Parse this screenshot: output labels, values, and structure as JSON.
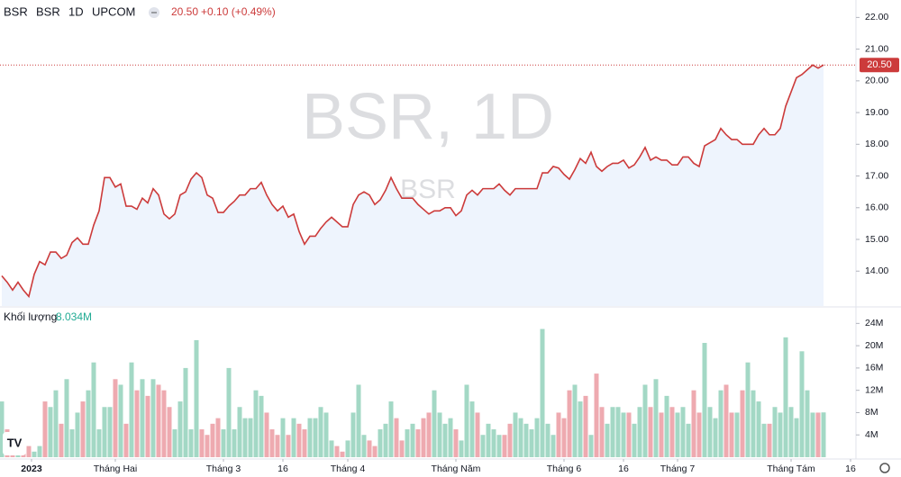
{
  "header": {
    "symbol": "BSR",
    "name": "BSR",
    "interval": "1D",
    "exchange": "UPCOM",
    "price": "20.50",
    "change": "+0.10 (+0.49%)",
    "watermark": "BSR, 1D",
    "watermark_sub": "BSR"
  },
  "chart_data": [
    {
      "type": "line",
      "color": "#cc3b3b",
      "area_color": "#eef4fd",
      "xlim": [
        -0.33,
        158
      ],
      "ylim": [
        12.9,
        22.55
      ],
      "yticks": [
        {
          "value": 14,
          "label": "14.00"
        },
        {
          "value": 15,
          "label": "15.00"
        },
        {
          "value": 16,
          "label": "16.00"
        },
        {
          "value": 17,
          "label": "17.00"
        },
        {
          "value": 18,
          "label": "18.00"
        },
        {
          "value": 19,
          "label": "19.00"
        },
        {
          "value": 20,
          "label": "20.00"
        },
        {
          "value": 21,
          "label": "21.00"
        },
        {
          "value": 22,
          "label": "22.00"
        }
      ],
      "values": [
        13.85,
        13.65,
        13.4,
        13.65,
        13.4,
        13.2,
        13.9,
        14.3,
        14.2,
        14.6,
        14.6,
        14.4,
        14.5,
        14.9,
        15.05,
        14.85,
        14.85,
        15.45,
        15.9,
        16.95,
        16.95,
        16.65,
        16.75,
        16.05,
        16.05,
        15.95,
        16.3,
        16.15,
        16.6,
        16.4,
        15.8,
        15.65,
        15.8,
        16.4,
        16.5,
        16.9,
        17.1,
        16.95,
        16.4,
        16.3,
        15.85,
        15.85,
        16.05,
        16.2,
        16.4,
        16.4,
        16.6,
        16.6,
        16.8,
        16.4,
        16.1,
        15.9,
        16.05,
        15.7,
        15.8,
        15.25,
        14.85,
        15.1,
        15.1,
        15.35,
        15.55,
        15.7,
        15.55,
        15.4,
        15.4,
        16.1,
        16.4,
        16.5,
        16.4,
        16.1,
        16.25,
        16.55,
        16.95,
        16.6,
        16.3,
        16.3,
        16.3,
        16.1,
        15.95,
        15.8,
        15.9,
        15.9,
        16.0,
        16.0,
        15.75,
        15.9,
        16.4,
        16.55,
        16.4,
        16.6,
        16.6,
        16.6,
        16.75,
        16.55,
        16.4,
        16.6,
        16.6,
        16.6,
        16.6,
        16.6,
        17.1,
        17.1,
        17.3,
        17.25,
        17.05,
        16.9,
        17.2,
        17.55,
        17.4,
        17.75,
        17.3,
        17.15,
        17.3,
        17.4,
        17.4,
        17.5,
        17.25,
        17.35,
        17.6,
        17.9,
        17.5,
        17.6,
        17.5,
        17.5,
        17.35,
        17.35,
        17.6,
        17.6,
        17.4,
        17.3,
        17.95,
        18.05,
        18.15,
        18.5,
        18.3,
        18.15,
        18.15,
        18.0,
        18.0,
        18.0,
        18.3,
        18.5,
        18.3,
        18.3,
        18.5,
        19.2,
        19.65,
        20.1,
        20.2,
        20.35,
        20.5,
        20.4,
        20.5
      ]
    },
    {
      "type": "bar",
      "title": "Khối lượng",
      "last_label": "8.034M",
      "up_color": "#a3d8c5",
      "down_color": "#eeaab0",
      "xlim": [
        -0.33,
        158
      ],
      "ylim": [
        0,
        26.8
      ],
      "yticks": [
        {
          "value": 4,
          "label": "4M"
        },
        {
          "value": 8,
          "label": "8M"
        },
        {
          "value": 12,
          "label": "12M"
        },
        {
          "value": 16,
          "label": "16M"
        },
        {
          "value": 20,
          "label": "20M"
        },
        {
          "value": 24,
          "label": "24M"
        }
      ],
      "xticks": [
        {
          "value": 5.5,
          "label": "2023"
        },
        {
          "value": 21,
          "label": "Tháng Hai"
        },
        {
          "value": 41,
          "label": "Tháng 3"
        },
        {
          "value": 52,
          "label": "16"
        },
        {
          "value": 64,
          "label": "Tháng 4"
        },
        {
          "value": 84,
          "label": "Tháng Năm"
        },
        {
          "value": 104,
          "label": "Tháng 6"
        },
        {
          "value": 115,
          "label": "16"
        },
        {
          "value": 125,
          "label": "Tháng 7"
        },
        {
          "value": 146,
          "label": "Tháng Tám"
        },
        {
          "value": 157,
          "label": "16"
        }
      ],
      "values": [
        10,
        5,
        3,
        2,
        3,
        2,
        1,
        2,
        10,
        9,
        12,
        6,
        14,
        5,
        8,
        10,
        12,
        17,
        5,
        9,
        9,
        14,
        13,
        6,
        17,
        12,
        14,
        11,
        14,
        13,
        12,
        9,
        5,
        10,
        16,
        5,
        21,
        5,
        4,
        6,
        7,
        5,
        16,
        5,
        9,
        7,
        7,
        12,
        11,
        8,
        5,
        4,
        7,
        4,
        7,
        6,
        5,
        7,
        7,
        9,
        8,
        3,
        2,
        1,
        3,
        8,
        13,
        4,
        3,
        2,
        5,
        6,
        10,
        7,
        3,
        5,
        6,
        5,
        7,
        8,
        12,
        8,
        6,
        7,
        5,
        3,
        13,
        10,
        8,
        4,
        6,
        5,
        4,
        4,
        6,
        8,
        7,
        6,
        5,
        7,
        23,
        6,
        4,
        8,
        7,
        12,
        13,
        10,
        11,
        4,
        15,
        9,
        6,
        9,
        9,
        8,
        8,
        6,
        9,
        13,
        9,
        14,
        8,
        11,
        9,
        8,
        9,
        6,
        12,
        8,
        20.5,
        9,
        7,
        12,
        13,
        8,
        8,
        12,
        17,
        12,
        10,
        6,
        6,
        9,
        8,
        21.5,
        9,
        7,
        19,
        12,
        8,
        8,
        8.034
      ]
    }
  ]
}
